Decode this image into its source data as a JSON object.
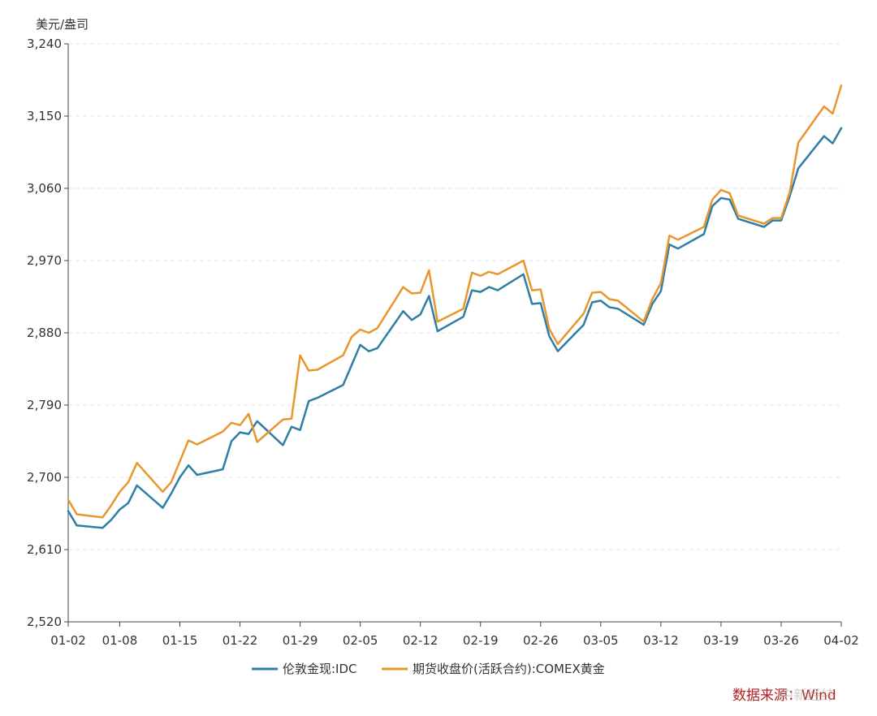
{
  "chart_data": {
    "type": "line",
    "unit_label": "美元/盎司",
    "ylim": [
      2520,
      3240
    ],
    "y_ticks": [
      2520,
      2610,
      2700,
      2790,
      2880,
      2970,
      3060,
      3150,
      3240
    ],
    "y_tick_labels": [
      "2,520",
      "2,610",
      "2,700",
      "2,790",
      "2,880",
      "2,970",
      "3,060",
      "3,150",
      "3,240"
    ],
    "x_tick_labels": [
      "01-02",
      "01-08",
      "01-15",
      "01-22",
      "01-29",
      "02-05",
      "02-12",
      "02-19",
      "02-26",
      "03-05",
      "03-12",
      "03-19",
      "03-26",
      "04-02"
    ],
    "x_tick_days": [
      0,
      6,
      13,
      20,
      27,
      34,
      41,
      48,
      55,
      62,
      69,
      76,
      83,
      90
    ],
    "grid": true,
    "legend_position": "bottom",
    "series": [
      {
        "name": "伦敦金现:IDC",
        "color": "#2e7ea6",
        "x": [
          "01-02",
          "01-03",
          "01-06",
          "01-07",
          "01-08",
          "01-09",
          "01-10",
          "01-13",
          "01-14",
          "01-15",
          "01-16",
          "01-17",
          "01-20",
          "01-21",
          "01-22",
          "01-23",
          "01-24",
          "01-27",
          "01-28",
          "01-29",
          "01-30",
          "01-31",
          "02-03",
          "02-04",
          "02-05",
          "02-06",
          "02-07",
          "02-10",
          "02-11",
          "02-12",
          "02-13",
          "02-14",
          "02-17",
          "02-18",
          "02-19",
          "02-20",
          "02-21",
          "02-24",
          "02-25",
          "02-26",
          "02-27",
          "02-28",
          "03-03",
          "03-04",
          "03-05",
          "03-06",
          "03-07",
          "03-10",
          "03-11",
          "03-12",
          "03-13",
          "03-14",
          "03-17",
          "03-18",
          "03-19",
          "03-20",
          "03-21",
          "03-24",
          "03-25",
          "03-26",
          "03-27",
          "03-28",
          "03-31",
          "04-01",
          "04-02"
        ],
        "values": [
          2658,
          2640,
          2637,
          2647,
          2660,
          2668,
          2690,
          2662,
          2680,
          2700,
          2715,
          2703,
          2710,
          2745,
          2756,
          2754,
          2770,
          2740,
          2763,
          2759,
          2795,
          2799,
          2815,
          2840,
          2865,
          2857,
          2861,
          2907,
          2896,
          2903,
          2926,
          2882,
          2900,
          2933,
          2931,
          2937,
          2933,
          2953,
          2916,
          2917,
          2876,
          2857,
          2890,
          2918,
          2920,
          2912,
          2910,
          2890,
          2916,
          2932,
          2990,
          2985,
          3003,
          3038,
          3048,
          3046,
          3022,
          3012,
          3020,
          3020,
          3050,
          3085,
          3125,
          3116,
          3135
        ]
      },
      {
        "name": "期货收盘价(活跃合约):COMEX黄金",
        "color": "#e8962e",
        "x": [
          "01-02",
          "01-03",
          "01-06",
          "01-07",
          "01-08",
          "01-09",
          "01-10",
          "01-13",
          "01-14",
          "01-15",
          "01-16",
          "01-17",
          "01-20",
          "01-21",
          "01-22",
          "01-23",
          "01-24",
          "01-27",
          "01-28",
          "01-29",
          "01-30",
          "01-31",
          "02-03",
          "02-04",
          "02-05",
          "02-06",
          "02-07",
          "02-10",
          "02-11",
          "02-12",
          "02-13",
          "02-14",
          "02-17",
          "02-18",
          "02-19",
          "02-20",
          "02-21",
          "02-24",
          "02-25",
          "02-26",
          "02-27",
          "02-28",
          "03-03",
          "03-04",
          "03-05",
          "03-06",
          "03-07",
          "03-10",
          "03-11",
          "03-12",
          "03-13",
          "03-14",
          "03-17",
          "03-18",
          "03-19",
          "03-20",
          "03-21",
          "03-24",
          "03-25",
          "03-26",
          "03-27",
          "03-28",
          "03-31",
          "04-01",
          "04-02"
        ],
        "values": [
          2672,
          2654,
          2650,
          2665,
          2682,
          2694,
          2718,
          2682,
          2694,
          2720,
          2746,
          2741,
          2757,
          2768,
          2765,
          2779,
          2744,
          2772,
          2773,
          2852,
          2833,
          2834,
          2852,
          2875,
          2884,
          2880,
          2886,
          2937,
          2929,
          2930,
          2958,
          2894,
          2910,
          2955,
          2951,
          2956,
          2953,
          2970,
          2933,
          2934,
          2885,
          2866,
          2904,
          2930,
          2931,
          2922,
          2920,
          2894,
          2922,
          2942,
          3001,
          2996,
          3012,
          3046,
          3058,
          3054,
          3026,
          3016,
          3023,
          3023,
          3055,
          3117,
          3162,
          3153,
          3188
        ]
      }
    ]
  },
  "source_text": "数据来源：Wind",
  "watermark_text": "中新经纬"
}
